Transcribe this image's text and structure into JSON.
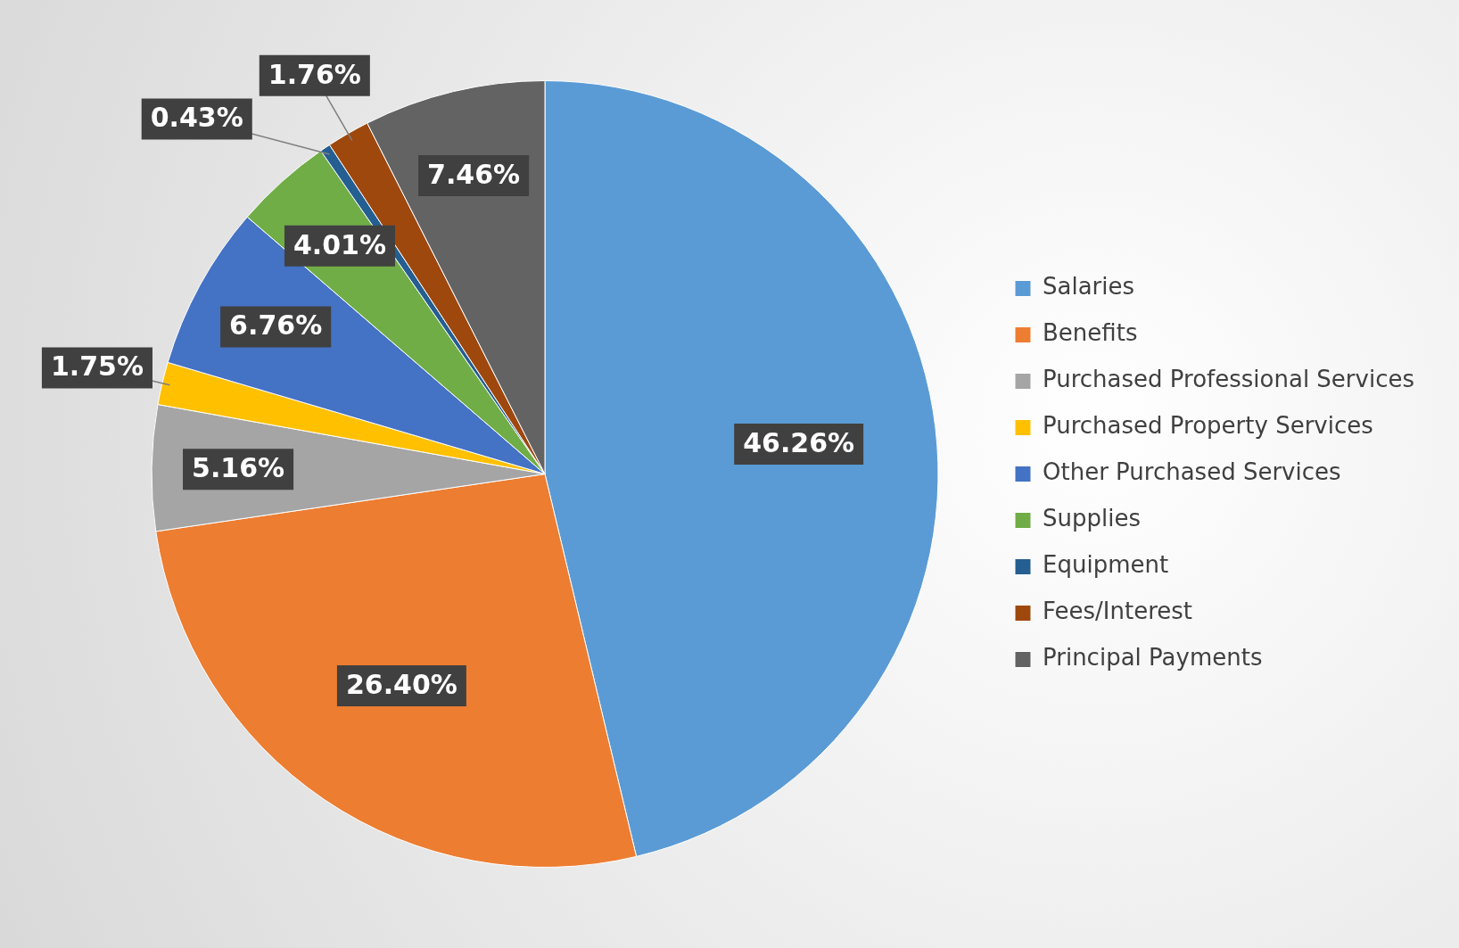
{
  "chart_data": {
    "type": "pie",
    "categories": [
      "Salaries",
      "Benefits",
      "Purchased Professional Services",
      "Purchased Property Services",
      "Other Purchased Services",
      "Supplies",
      "Equipment",
      "Fees/Interest",
      "Principal Payments"
    ],
    "values": [
      46.26,
      26.4,
      5.16,
      1.75,
      6.76,
      4.01,
      0.43,
      1.76,
      7.46
    ],
    "value_labels": [
      "46.26%",
      "26.40%",
      "5.16%",
      "1.75%",
      "6.76%",
      "4.01%",
      "0.43%",
      "1.76%",
      "7.46%"
    ],
    "colors": [
      "#5b9bd5",
      "#ed7d31",
      "#a5a5a5",
      "#ffc000",
      "#4472c4",
      "#70ad47",
      "#255e91",
      "#9e480e",
      "#636363"
    ],
    "legend": "right"
  }
}
